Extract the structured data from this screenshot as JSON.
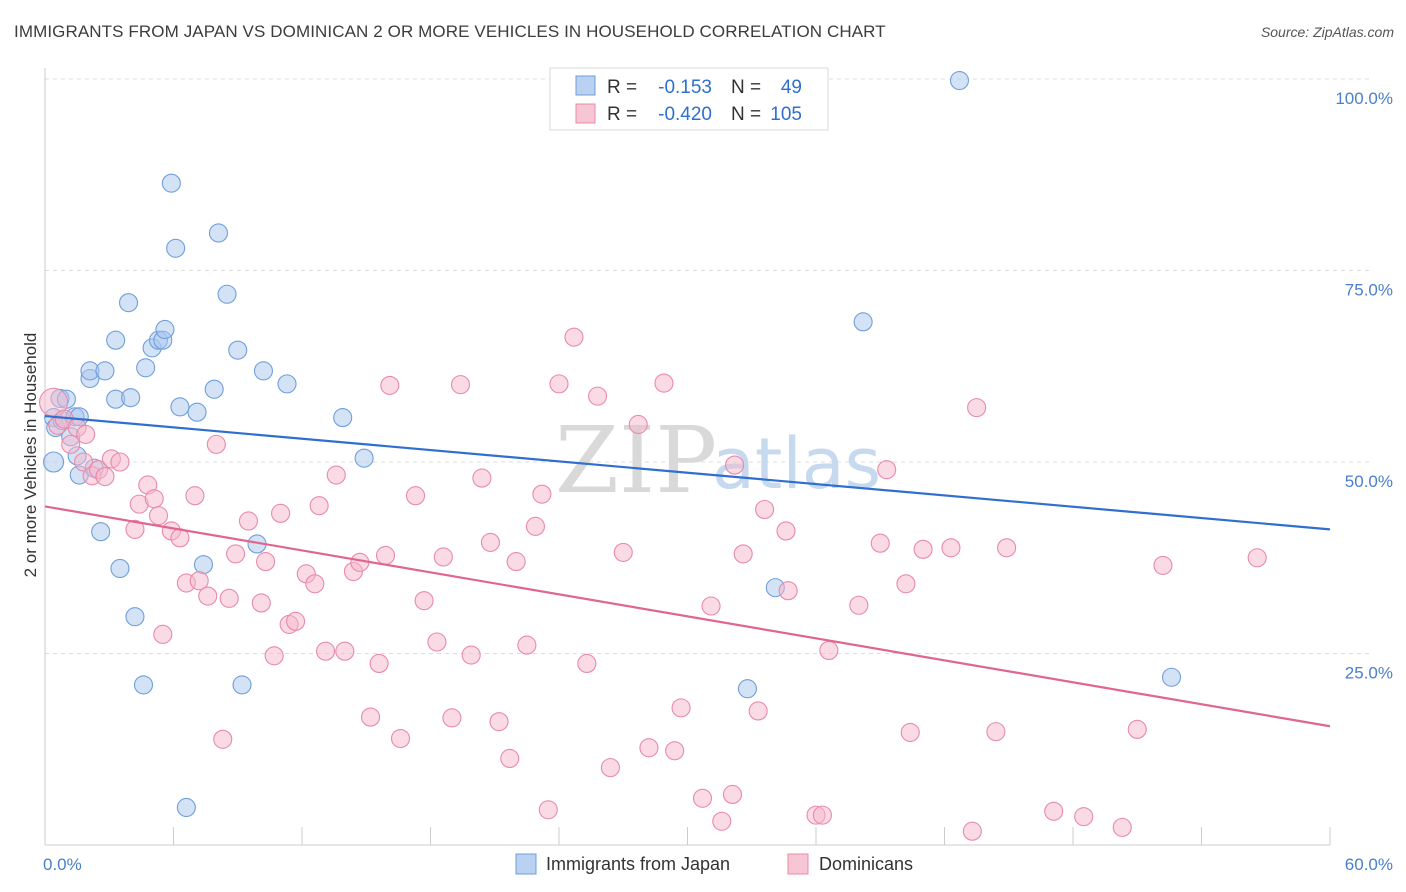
{
  "title": "IMMIGRANTS FROM JAPAN VS DOMINICAN 2 OR MORE VEHICLES IN HOUSEHOLD CORRELATION CHART",
  "source": "Source: ZipAtlas.com",
  "watermark": {
    "zip": "ZIP",
    "atlas": "atlas"
  },
  "legend": {
    "r_label": "R =",
    "n_label": "N =",
    "rows": [
      {
        "series": "Immigrants from Japan",
        "r": "-0.153",
        "n": "49",
        "fill": "#a9c6ee",
        "stroke": "#6f9fdc"
      },
      {
        "series": "Dominicans",
        "r": "-0.420",
        "n": "105",
        "fill": "#f5b8cb",
        "stroke": "#e88aa9"
      }
    ]
  },
  "chart_data": {
    "type": "scatter",
    "xlabel": "",
    "ylabel": "2 or more Vehicles in Household",
    "xlim": [
      0,
      60
    ],
    "ylim": [
      0,
      100
    ],
    "x_ticks": [
      "0.0%",
      "60.0%"
    ],
    "y_ticks": [
      "25.0%",
      "50.0%",
      "75.0%",
      "100.0%"
    ],
    "y_tick_values": [
      25,
      50,
      75,
      100
    ],
    "grid": true,
    "series": [
      {
        "name": "Immigrants from Japan",
        "color": "#6f9fdc",
        "fill": "#a9c6ee",
        "trend": {
          "x": [
            0,
            60
          ],
          "y": [
            56.0,
            41.2
          ],
          "color": "#2f6fcf"
        },
        "points": [
          [
            0.4,
            55.8
          ],
          [
            0.4,
            50.0
          ],
          [
            0.5,
            54.5
          ],
          [
            0.7,
            58.3
          ],
          [
            0.8,
            55.4
          ],
          [
            1.0,
            58.2
          ],
          [
            1.2,
            53.3
          ],
          [
            1.4,
            55.9
          ],
          [
            1.5,
            50.8
          ],
          [
            1.6,
            48.3
          ],
          [
            1.6,
            55.9
          ],
          [
            2.1,
            60.9
          ],
          [
            2.1,
            61.9
          ],
          [
            2.6,
            40.9
          ],
          [
            2.8,
            61.9
          ],
          [
            3.3,
            65.9
          ],
          [
            3.3,
            58.2
          ],
          [
            3.5,
            36.1
          ],
          [
            3.9,
            70.8
          ],
          [
            4.0,
            58.4
          ],
          [
            4.2,
            29.8
          ],
          [
            4.6,
            20.9
          ],
          [
            4.7,
            62.3
          ],
          [
            5.0,
            64.9
          ],
          [
            5.3,
            65.9
          ],
          [
            5.5,
            65.9
          ],
          [
            5.6,
            67.3
          ],
          [
            5.9,
            86.4
          ],
          [
            6.1,
            77.9
          ],
          [
            6.3,
            57.2
          ],
          [
            6.6,
            4.9
          ],
          [
            7.1,
            56.5
          ],
          [
            7.4,
            36.6
          ],
          [
            7.9,
            59.5
          ],
          [
            8.1,
            79.9
          ],
          [
            8.5,
            71.9
          ],
          [
            9.0,
            64.6
          ],
          [
            9.2,
            20.9
          ],
          [
            9.9,
            39.3
          ],
          [
            10.2,
            61.9
          ],
          [
            11.3,
            60.2
          ],
          [
            13.9,
            55.8
          ],
          [
            14.9,
            50.5
          ],
          [
            2.3,
            49.2
          ],
          [
            32.8,
            20.4
          ],
          [
            34.1,
            33.6
          ],
          [
            38.2,
            68.3
          ],
          [
            42.7,
            99.8
          ],
          [
            52.6,
            21.9
          ]
        ]
      },
      {
        "name": "Dominicans",
        "color": "#e88aa9",
        "fill": "#f5b8cb",
        "trend": {
          "x": [
            0,
            60
          ],
          "y": [
            44.2,
            15.5
          ],
          "color": "#e0658f"
        },
        "points": [
          [
            0.4,
            57.8
          ],
          [
            0.6,
            54.8
          ],
          [
            0.9,
            55.6
          ],
          [
            1.2,
            52.3
          ],
          [
            1.5,
            54.5
          ],
          [
            1.8,
            50.0
          ],
          [
            1.9,
            53.6
          ],
          [
            2.2,
            48.2
          ],
          [
            2.5,
            49.0
          ],
          [
            2.8,
            48.1
          ],
          [
            3.1,
            50.4
          ],
          [
            3.5,
            50.0
          ],
          [
            4.2,
            41.2
          ],
          [
            4.4,
            44.5
          ],
          [
            4.8,
            47.0
          ],
          [
            5.1,
            45.2
          ],
          [
            5.3,
            43.0
          ],
          [
            5.5,
            27.5
          ],
          [
            5.9,
            41.0
          ],
          [
            6.3,
            40.1
          ],
          [
            6.6,
            34.2
          ],
          [
            7.0,
            45.6
          ],
          [
            7.2,
            34.5
          ],
          [
            7.6,
            32.5
          ],
          [
            8.0,
            52.3
          ],
          [
            8.3,
            13.8
          ],
          [
            8.6,
            32.2
          ],
          [
            8.9,
            38.0
          ],
          [
            9.5,
            42.3
          ],
          [
            10.1,
            31.6
          ],
          [
            10.3,
            37.0
          ],
          [
            10.7,
            24.7
          ],
          [
            11.0,
            43.3
          ],
          [
            11.4,
            28.8
          ],
          [
            11.7,
            29.2
          ],
          [
            12.2,
            35.4
          ],
          [
            12.6,
            34.1
          ],
          [
            12.8,
            44.3
          ],
          [
            13.1,
            25.3
          ],
          [
            13.6,
            48.3
          ],
          [
            14.0,
            25.3
          ],
          [
            14.4,
            35.7
          ],
          [
            14.7,
            36.9
          ],
          [
            15.2,
            16.7
          ],
          [
            15.6,
            23.7
          ],
          [
            15.9,
            37.8
          ],
          [
            16.1,
            60.0
          ],
          [
            16.6,
            13.9
          ],
          [
            17.3,
            45.6
          ],
          [
            17.7,
            31.9
          ],
          [
            18.3,
            26.5
          ],
          [
            18.6,
            37.6
          ],
          [
            19.0,
            16.6
          ],
          [
            19.4,
            60.1
          ],
          [
            19.9,
            24.8
          ],
          [
            20.4,
            47.9
          ],
          [
            20.8,
            39.5
          ],
          [
            21.2,
            16.1
          ],
          [
            21.7,
            11.3
          ],
          [
            22.0,
            37.0
          ],
          [
            22.5,
            26.1
          ],
          [
            22.9,
            41.6
          ],
          [
            23.2,
            45.8
          ],
          [
            23.5,
            4.6
          ],
          [
            24.0,
            60.2
          ],
          [
            24.7,
            66.3
          ],
          [
            25.3,
            23.7
          ],
          [
            25.8,
            58.6
          ],
          [
            26.4,
            10.1
          ],
          [
            27.0,
            38.2
          ],
          [
            27.7,
            54.9
          ],
          [
            28.2,
            12.7
          ],
          [
            28.9,
            60.3
          ],
          [
            29.4,
            12.3
          ],
          [
            29.7,
            17.9
          ],
          [
            30.7,
            6.1
          ],
          [
            31.1,
            31.2
          ],
          [
            31.6,
            3.1
          ],
          [
            32.1,
            6.6
          ],
          [
            32.2,
            49.6
          ],
          [
            32.6,
            38.0
          ],
          [
            33.3,
            17.5
          ],
          [
            33.6,
            43.8
          ],
          [
            34.6,
            41.0
          ],
          [
            34.7,
            33.2
          ],
          [
            36.0,
            3.9
          ],
          [
            36.3,
            3.9
          ],
          [
            36.6,
            25.4
          ],
          [
            38.0,
            31.3
          ],
          [
            39.0,
            39.4
          ],
          [
            39.3,
            49.0
          ],
          [
            40.2,
            34.1
          ],
          [
            40.4,
            14.7
          ],
          [
            41.0,
            38.6
          ],
          [
            42.3,
            38.8
          ],
          [
            43.3,
            1.8
          ],
          [
            43.5,
            57.1
          ],
          [
            44.4,
            14.8
          ],
          [
            44.9,
            38.8
          ],
          [
            47.1,
            4.4
          ],
          [
            48.5,
            3.7
          ],
          [
            50.3,
            2.3
          ],
          [
            51.0,
            15.1
          ],
          [
            52.2,
            36.5
          ],
          [
            56.6,
            37.5
          ]
        ]
      }
    ]
  },
  "bottom_legend": [
    "Immigrants from Japan",
    "Dominicans"
  ]
}
